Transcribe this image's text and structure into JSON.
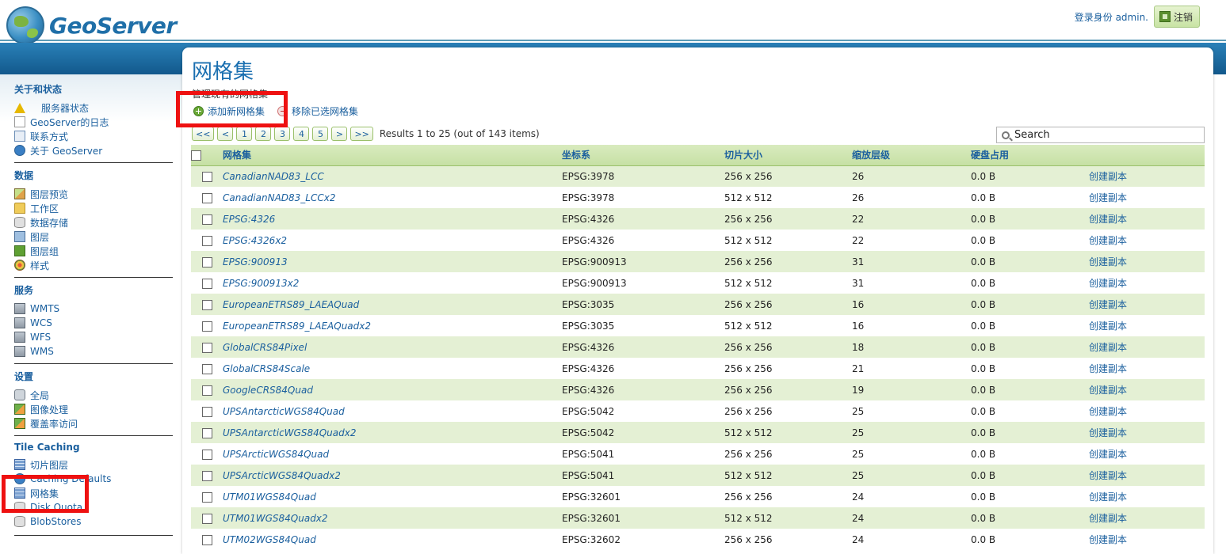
{
  "header": {
    "logo_text": "GeoServer",
    "user_label": "登录身份 admin.",
    "logout_label": "注销"
  },
  "sidebar": {
    "sections": [
      {
        "title": "关于和状态",
        "items": [
          {
            "label": "服务器状态",
            "icon": "warning-icon"
          },
          {
            "label": "GeoServer的日志",
            "icon": "document-icon"
          },
          {
            "label": "联系方式",
            "icon": "contact-card-icon"
          },
          {
            "label": "关于 GeoServer",
            "icon": "info-icon"
          }
        ]
      },
      {
        "title": "数据",
        "items": [
          {
            "label": "图层预览",
            "icon": "map-preview-icon"
          },
          {
            "label": "工作区",
            "icon": "folder-icon"
          },
          {
            "label": "数据存储",
            "icon": "database-icon"
          },
          {
            "label": "图层",
            "icon": "layer-icon"
          },
          {
            "label": "图层组",
            "icon": "layer-group-icon"
          },
          {
            "label": "样式",
            "icon": "palette-icon"
          }
        ]
      },
      {
        "title": "服务",
        "items": [
          {
            "label": "WMTS",
            "icon": "service-icon"
          },
          {
            "label": "WCS",
            "icon": "service-icon"
          },
          {
            "label": "WFS",
            "icon": "service-icon"
          },
          {
            "label": "WMS",
            "icon": "service-icon"
          }
        ]
      },
      {
        "title": "设置",
        "items": [
          {
            "label": "全局",
            "icon": "settings-icon"
          },
          {
            "label": "图像处理",
            "icon": "image-icon"
          },
          {
            "label": "覆盖率访问",
            "icon": "image-icon"
          }
        ]
      },
      {
        "title": "Tile Caching",
        "items": [
          {
            "label": "切片图层",
            "icon": "tile-layer-icon"
          },
          {
            "label": "Caching Defaults",
            "icon": "globe-icon"
          },
          {
            "label": "网格集",
            "icon": "gridset-icon"
          },
          {
            "label": "Disk Quota",
            "icon": "disk-icon"
          },
          {
            "label": "BlobStores",
            "icon": "blobstore-icon"
          }
        ]
      }
    ]
  },
  "main": {
    "title": "网格集",
    "description": "管理现有的网格集",
    "add_label": "添加新网格集",
    "remove_label": "移除已选网格集",
    "pager": {
      "buttons": [
        "<<",
        "<",
        "1",
        "2",
        "3",
        "4",
        "5",
        ">",
        ">>"
      ],
      "result_text": "Results 1 to 25 (out of 143 items)"
    },
    "search_placeholder": "Search",
    "columns": [
      "网格集",
      "坐标系",
      "切片大小",
      "缩放层级",
      "硬盘占用",
      ""
    ],
    "copy_label": "创建副本",
    "rows": [
      {
        "name": "CanadianNAD83_LCC",
        "crs": "EPSG:3978",
        "tile": "256 x 256",
        "zoom": "26",
        "disk": "0.0 B"
      },
      {
        "name": "CanadianNAD83_LCCx2",
        "crs": "EPSG:3978",
        "tile": "512 x 512",
        "zoom": "26",
        "disk": "0.0 B"
      },
      {
        "name": "EPSG:4326",
        "crs": "EPSG:4326",
        "tile": "256 x 256",
        "zoom": "22",
        "disk": "0.0 B"
      },
      {
        "name": "EPSG:4326x2",
        "crs": "EPSG:4326",
        "tile": "512 x 512",
        "zoom": "22",
        "disk": "0.0 B"
      },
      {
        "name": "EPSG:900913",
        "crs": "EPSG:900913",
        "tile": "256 x 256",
        "zoom": "31",
        "disk": "0.0 B"
      },
      {
        "name": "EPSG:900913x2",
        "crs": "EPSG:900913",
        "tile": "512 x 512",
        "zoom": "31",
        "disk": "0.0 B"
      },
      {
        "name": "EuropeanETRS89_LAEAQuad",
        "crs": "EPSG:3035",
        "tile": "256 x 256",
        "zoom": "16",
        "disk": "0.0 B"
      },
      {
        "name": "EuropeanETRS89_LAEAQuadx2",
        "crs": "EPSG:3035",
        "tile": "512 x 512",
        "zoom": "16",
        "disk": "0.0 B"
      },
      {
        "name": "GlobalCRS84Pixel",
        "crs": "EPSG:4326",
        "tile": "256 x 256",
        "zoom": "18",
        "disk": "0.0 B"
      },
      {
        "name": "GlobalCRS84Scale",
        "crs": "EPSG:4326",
        "tile": "256 x 256",
        "zoom": "21",
        "disk": "0.0 B"
      },
      {
        "name": "GoogleCRS84Quad",
        "crs": "EPSG:4326",
        "tile": "256 x 256",
        "zoom": "19",
        "disk": "0.0 B"
      },
      {
        "name": "UPSAntarcticWGS84Quad",
        "crs": "EPSG:5042",
        "tile": "256 x 256",
        "zoom": "25",
        "disk": "0.0 B"
      },
      {
        "name": "UPSAntarcticWGS84Quadx2",
        "crs": "EPSG:5042",
        "tile": "512 x 512",
        "zoom": "25",
        "disk": "0.0 B"
      },
      {
        "name": "UPSArcticWGS84Quad",
        "crs": "EPSG:5041",
        "tile": "256 x 256",
        "zoom": "25",
        "disk": "0.0 B"
      },
      {
        "name": "UPSArcticWGS84Quadx2",
        "crs": "EPSG:5041",
        "tile": "512 x 512",
        "zoom": "25",
        "disk": "0.0 B"
      },
      {
        "name": "UTM01WGS84Quad",
        "crs": "EPSG:32601",
        "tile": "256 x 256",
        "zoom": "24",
        "disk": "0.0 B"
      },
      {
        "name": "UTM01WGS84Quadx2",
        "crs": "EPSG:32601",
        "tile": "512 x 512",
        "zoom": "24",
        "disk": "0.0 B"
      },
      {
        "name": "UTM02WGS84Quad",
        "crs": "EPSG:32602",
        "tile": "256 x 256",
        "zoom": "24",
        "disk": "0.0 B"
      }
    ]
  }
}
